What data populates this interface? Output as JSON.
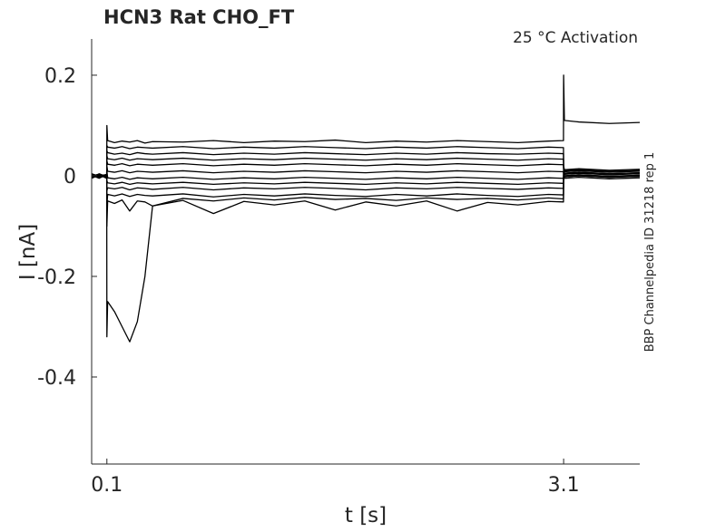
{
  "chart_data": {
    "type": "line",
    "title": "HCN3  Rat  CHO_FT",
    "annotation": "25 °C  Activation",
    "side_label": "BBP Channelpedia ID 31218 rep 1",
    "xlabel": "t [s]",
    "ylabel": "I [nA]",
    "xlim": [
      0,
      3.6
    ],
    "ylim": [
      -0.573,
      0.272
    ],
    "xticks": [
      0.1,
      3.1
    ],
    "yticks": [
      -0.4,
      -0.2,
      0,
      0.2
    ],
    "x": [
      0,
      0.05,
      0.099,
      0.1,
      0.105,
      0.15,
      0.2,
      0.25,
      0.3,
      0.35,
      0.4,
      0.6,
      0.8,
      1.0,
      1.2,
      1.4,
      1.6,
      1.8,
      2.0,
      2.2,
      2.4,
      2.6,
      2.8,
      3.0,
      3.099,
      3.1,
      3.105,
      3.2,
      3.4,
      3.6
    ],
    "series": [
      {
        "color": "#000000",
        "values": [
          0,
          0.003,
          -0.002,
          0.1,
          0.07,
          0.066,
          0.069,
          0.067,
          0.07,
          0.065,
          0.068,
          0.067,
          0.07,
          0.066,
          0.069,
          0.068,
          0.071,
          0.066,
          0.069,
          0.067,
          0.07,
          0.068,
          0.066,
          0.069,
          0.07,
          0.2,
          0.11,
          0.107,
          0.104,
          0.106
        ]
      },
      {
        "color": "#000000",
        "values": [
          -0.002,
          0.001,
          0.002,
          0.06,
          0.057,
          0.055,
          0.058,
          0.054,
          0.057,
          0.056,
          0.055,
          0.058,
          0.054,
          0.057,
          0.055,
          0.058,
          0.056,
          0.054,
          0.057,
          0.055,
          0.058,
          0.056,
          0.054,
          0.057,
          0.056,
          0.02,
          0.012,
          0.014,
          0.011,
          0.013
        ]
      },
      {
        "color": "#000000",
        "values": [
          0.004,
          -0.003,
          0.001,
          0.05,
          0.046,
          0.043,
          0.045,
          0.042,
          0.046,
          0.044,
          0.043,
          0.046,
          0.042,
          0.045,
          0.043,
          0.046,
          0.044,
          0.042,
          0.045,
          0.043,
          0.046,
          0.044,
          0.043,
          0.045,
          0.044,
          0.015,
          0.008,
          0.01,
          0.007,
          0.009
        ]
      },
      {
        "color": "#000000",
        "values": [
          -0.004,
          0.002,
          -0.001,
          0.04,
          0.034,
          0.032,
          0.035,
          0.031,
          0.034,
          0.033,
          0.032,
          0.035,
          0.031,
          0.034,
          0.032,
          0.035,
          0.033,
          0.031,
          0.034,
          0.032,
          0.035,
          0.033,
          0.031,
          0.034,
          0.033,
          0.012,
          0.01,
          0.012,
          0.009,
          0.011
        ]
      },
      {
        "color": "#000000",
        "values": [
          0.003,
          -0.002,
          0.003,
          0.03,
          0.023,
          0.021,
          0.024,
          0.02,
          0.023,
          0.022,
          0.021,
          0.024,
          0.02,
          0.023,
          0.021,
          0.024,
          0.022,
          0.02,
          0.023,
          0.021,
          0.024,
          0.022,
          0.02,
          0.023,
          0.022,
          0.008,
          0.005,
          0.007,
          0.004,
          0.006
        ]
      },
      {
        "color": "#000000",
        "values": [
          -0.003,
          0.004,
          -0.002,
          0.02,
          0.009,
          0.007,
          0.01,
          0.006,
          0.009,
          0.008,
          0.007,
          0.01,
          0.006,
          0.009,
          0.007,
          0.01,
          0.008,
          0.006,
          0.009,
          0.007,
          0.01,
          0.008,
          0.006,
          0.009,
          0.008,
          0.004,
          0,
          0.002,
          -0.001,
          0.001
        ]
      },
      {
        "color": "#000000",
        "values": [
          0.002,
          -0.004,
          0.001,
          0.01,
          -0.004,
          -0.006,
          -0.003,
          -0.007,
          -0.004,
          -0.005,
          -0.006,
          -0.003,
          -0.007,
          -0.004,
          -0.006,
          -0.003,
          -0.005,
          -0.007,
          -0.004,
          -0.006,
          -0.003,
          -0.005,
          -0.007,
          -0.004,
          -0.005,
          0.01,
          0.005,
          0.007,
          0.004,
          0.006
        ]
      },
      {
        "color": "#000000",
        "values": [
          -0.001,
          0.003,
          -0.004,
          -0.01,
          -0.014,
          -0.016,
          -0.013,
          -0.017,
          -0.014,
          -0.015,
          -0.016,
          -0.013,
          -0.017,
          -0.014,
          -0.016,
          -0.013,
          -0.015,
          -0.017,
          -0.014,
          -0.016,
          -0.013,
          -0.015,
          -0.017,
          -0.014,
          -0.015,
          0.005,
          -0.002,
          0,
          -0.003,
          -0.001
        ]
      },
      {
        "color": "#000000",
        "values": [
          0.004,
          -0.001,
          0.002,
          -0.03,
          -0.024,
          -0.026,
          -0.023,
          -0.028,
          -0.024,
          -0.025,
          -0.027,
          -0.023,
          -0.028,
          -0.024,
          -0.026,
          -0.023,
          -0.025,
          -0.028,
          -0.024,
          -0.026,
          -0.023,
          -0.025,
          -0.027,
          -0.024,
          -0.025,
          0.01,
          0.003,
          0.005,
          0.002,
          0.004
        ]
      },
      {
        "color": "#000000",
        "values": [
          -0.005,
          0.002,
          -0.003,
          -0.06,
          -0.037,
          -0.04,
          -0.036,
          -0.041,
          -0.037,
          -0.039,
          -0.04,
          -0.036,
          -0.042,
          -0.037,
          -0.04,
          -0.036,
          -0.039,
          -0.041,
          -0.037,
          -0.04,
          -0.036,
          -0.039,
          -0.041,
          -0.037,
          -0.038,
          0.005,
          0,
          0.002,
          -0.001,
          0.001
        ]
      },
      {
        "color": "#000000",
        "values": [
          0.001,
          -0.005,
          0.003,
          -0.1,
          -0.05,
          -0.055,
          -0.048,
          -0.07,
          -0.05,
          -0.052,
          -0.06,
          -0.049,
          -0.075,
          -0.051,
          -0.058,
          -0.05,
          -0.068,
          -0.052,
          -0.06,
          -0.05,
          -0.07,
          -0.053,
          -0.058,
          -0.051,
          -0.052,
          0,
          -0.005,
          -0.003,
          -0.006,
          -0.004
        ]
      },
      {
        "color": "#000000",
        "values": [
          0,
          0.002,
          -0.005,
          -0.32,
          -0.25,
          -0.27,
          -0.3,
          -0.33,
          -0.29,
          -0.2,
          -0.06,
          -0.045,
          -0.05,
          -0.044,
          -0.048,
          -0.043,
          -0.047,
          -0.045,
          -0.049,
          -0.044,
          -0.047,
          -0.045,
          -0.048,
          -0.044,
          -0.046,
          0.01,
          -0.002,
          0,
          -0.003,
          -0.001
        ]
      }
    ]
  }
}
